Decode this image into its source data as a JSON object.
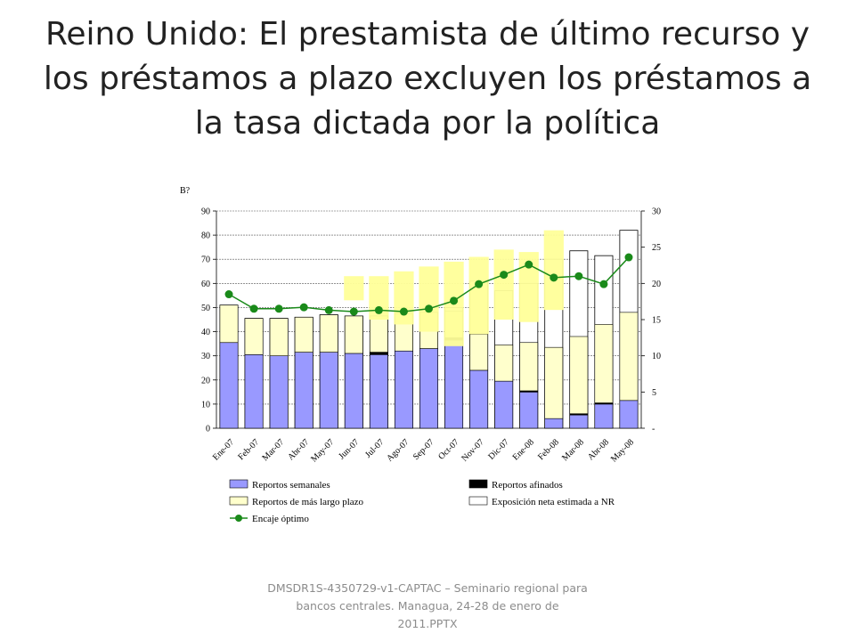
{
  "slide": {
    "title": "Reino Unido: El prestamista de último recurso y los préstamos a plazo excluyen los préstamos a la tasa dictada por la política",
    "footer": "DMSDR1S-4350729-v1-CAPTAC – Seminario regional para bancos centrales. Managua, 24-28 de enero de 2011.PPTX"
  },
  "chart_data": {
    "type": "bar",
    "ylabel_left": "B?",
    "categories": [
      "Ene-07",
      "Feb-07",
      "Mar-07",
      "Abr-07",
      "May-07",
      "Jun-07",
      "Jul-07",
      "Ago-07",
      "Sep-07",
      "Oct-07",
      "Nov-07",
      "Dic-07",
      "Ene-08",
      "Feb-08",
      "Mar-08",
      "Abr-08",
      "May-08"
    ],
    "bar_slots": 17,
    "ylim_left": [
      0,
      90
    ],
    "yticks_left": [
      "0",
      "10",
      "20",
      "30",
      "40",
      "50",
      "60",
      "70",
      "80",
      "90"
    ],
    "ylim_right": [
      0,
      30
    ],
    "yticks_right": [
      "-",
      "5",
      "10",
      "15",
      "20",
      "25",
      "30"
    ],
    "series": [
      {
        "name": "Reportos semanales",
        "color": "#9999ff",
        "values": [
          35.5,
          30.5,
          30,
          31.5,
          31.5,
          31,
          30.5,
          32,
          33,
          36.5,
          24,
          19.5,
          15,
          4,
          5.5,
          10,
          11.5
        ]
      },
      {
        "name": "Reportos afinados",
        "color": "#000000",
        "values": [
          0,
          0,
          0,
          0,
          0,
          0,
          1,
          0,
          0,
          1,
          0,
          0,
          0.5,
          0,
          0.5,
          0.5,
          0
        ]
      },
      {
        "name": "Reportos de más largo plazo",
        "color": "#ffffcc",
        "values": [
          15.5,
          15,
          15.5,
          14.5,
          15.5,
          15.5,
          15,
          15.5,
          15,
          11,
          15,
          15,
          20,
          29.5,
          32,
          32.5,
          36.5
        ]
      },
      {
        "name": "Exposición neta estimada a NR",
        "color": "#ffffff",
        "values": [
          51,
          45.5,
          45.5,
          46,
          47,
          46.5,
          46.5,
          47,
          48,
          50,
          61,
          57,
          60,
          70,
          73.5,
          71.5,
          82
        ]
      },
      {
        "name": "Encaje óptimo",
        "color": "#1a8a1a",
        "axis": "right",
        "values": [
          18.5,
          16.5,
          16.5,
          16.7,
          16.3,
          16.1,
          16.3,
          16.1,
          16.5,
          17.6,
          19.9,
          21.2,
          22.6,
          20.8,
          21,
          19.9,
          23.6
        ]
      }
    ],
    "overlay_bars": [
      {
        "slot": 6,
        "range": [
          0,
          0
        ]
      },
      {
        "slot": 6.5,
        "range": [
          0,
          0
        ]
      }
    ],
    "highlight_color": "#ffff99",
    "highlight_ranges": [
      {
        "slot": 5.5,
        "y": [
          53,
          63
        ]
      },
      {
        "slot": 6.5,
        "y": [
          45,
          63
        ]
      },
      {
        "slot": 7.5,
        "y": [
          43,
          65
        ]
      },
      {
        "slot": 8.5,
        "y": [
          40,
          67
        ]
      },
      {
        "slot": 9.5,
        "y": [
          34,
          69
        ]
      },
      {
        "slot": 10.5,
        "y": [
          39,
          71
        ]
      },
      {
        "slot": 11.5,
        "y": [
          45,
          74
        ]
      },
      {
        "slot": 12.5,
        "y": [
          44,
          73
        ]
      },
      {
        "slot": 13.5,
        "y": [
          49,
          82
        ]
      }
    ],
    "legend_position": "bottom",
    "grid": true
  }
}
